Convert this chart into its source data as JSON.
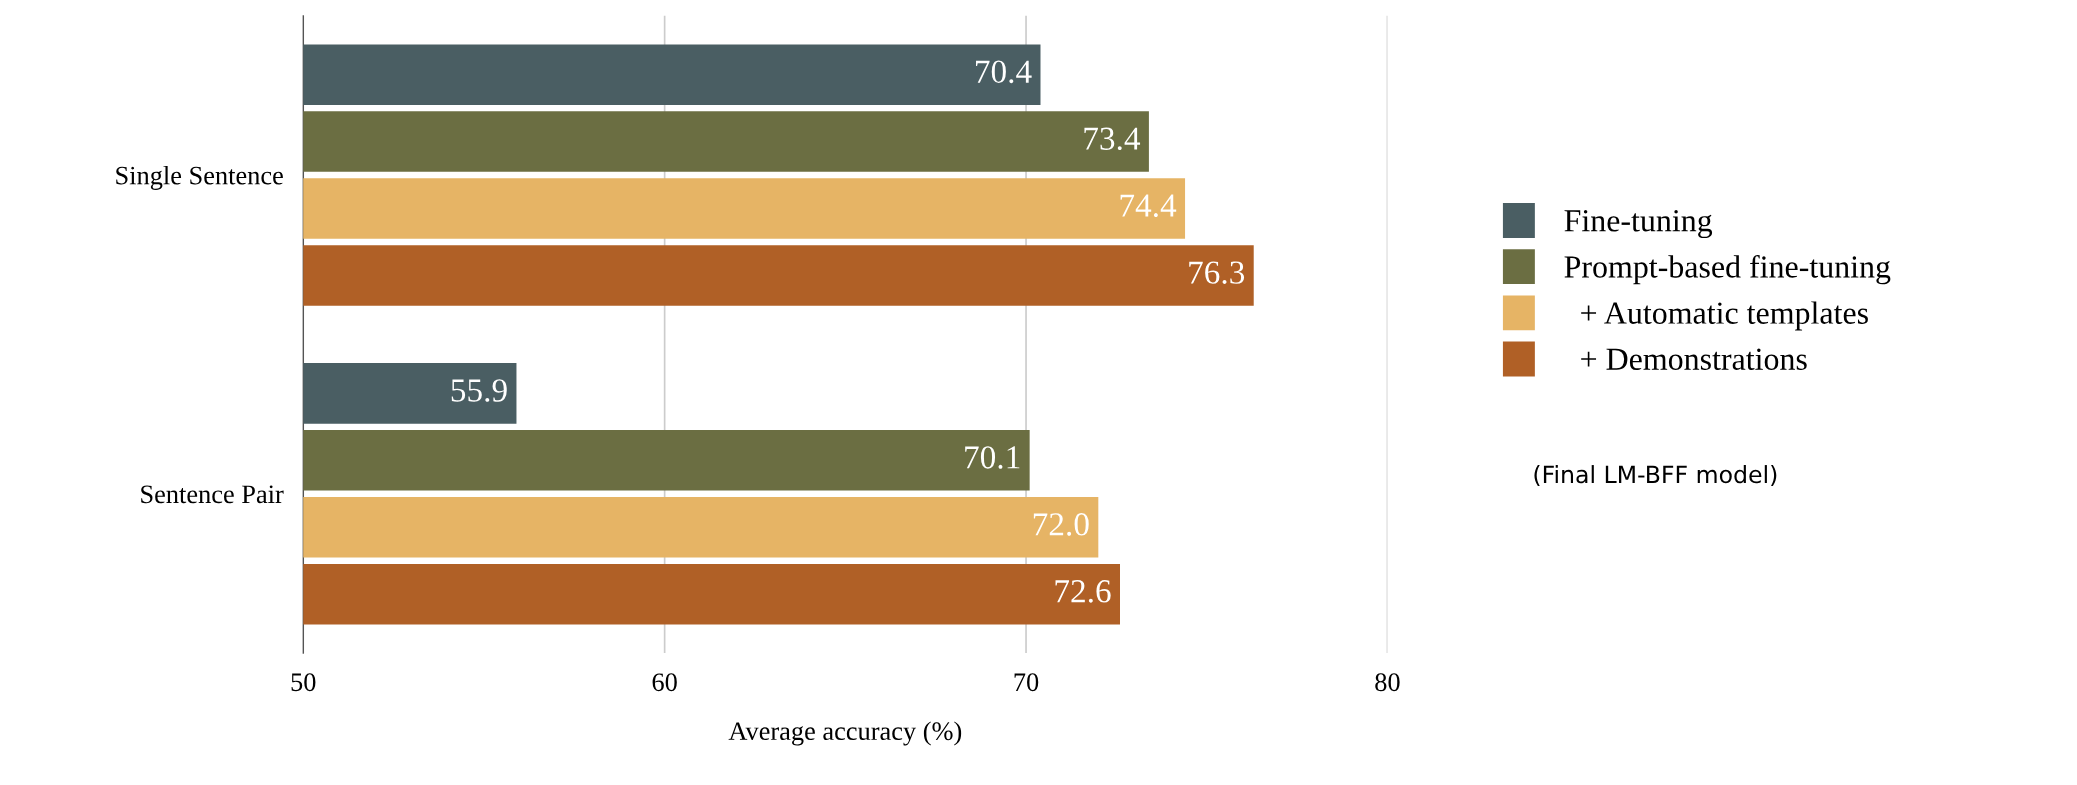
{
  "chart_data": {
    "type": "bar",
    "orientation": "horizontal",
    "xlabel": "Average accuracy (%)",
    "categories": [
      "Single Sentence",
      "Sentence Pair"
    ],
    "series": [
      {
        "name": "Fine-tuning",
        "color": "#4a5e63",
        "values": [
          70.4,
          55.9
        ],
        "value_labels": [
          "70.4",
          "55.9"
        ]
      },
      {
        "name": "Prompt-based fine-tuning",
        "color": "#6b6e42",
        "values": [
          73.4,
          70.1
        ],
        "value_labels": [
          "73.4",
          "70.1"
        ]
      },
      {
        "name": "  + Automatic templates",
        "color": "#e6b465",
        "values": [
          74.4,
          72.0
        ],
        "value_labels": [
          "74.4",
          "72.0"
        ]
      },
      {
        "name": "  + Demonstrations",
        "color": "#b06026",
        "values": [
          76.3,
          72.6
        ],
        "value_labels": [
          "76.3",
          "72.6"
        ]
      }
    ],
    "xlim": [
      50,
      80
    ],
    "xticks": [
      50,
      60,
      70,
      80
    ],
    "grid": "x",
    "legend": "right",
    "annotations": [
      "(Final LM-BFF model)"
    ]
  }
}
